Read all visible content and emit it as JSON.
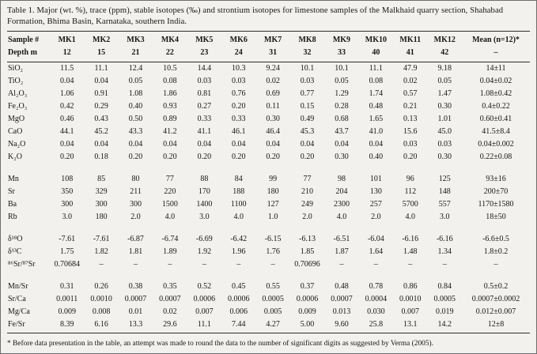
{
  "page": {
    "caption": "Table 1. Major (wt. %), trace (ppm), stable isotopes (‰) and strontium isotopes for limestone samples of the Malkhaid quarry section, Shahabad Formation, Bhima Basin, Karnataka, southern India.",
    "footnote": "* Before data presentation in the table, an attempt was made to round the data to the number of significant digits as suggested by Verma (2005)."
  },
  "table": {
    "corner": {
      "line1": "Sample #",
      "line2": "Depth m"
    },
    "samples": [
      "MK1",
      "MK2",
      "MK3",
      "MK4",
      "MK5",
      "MK6",
      "MK7",
      "MK8",
      "MK9",
      "MK10",
      "MK11",
      "MK12"
    ],
    "depths": [
      "12",
      "15",
      "21",
      "22",
      "23",
      "24",
      "31",
      "32",
      "33",
      "40",
      "41",
      "42"
    ],
    "mean_label": "Mean (n=12)*",
    "mean_depth": "–",
    "groups": [
      {
        "name": "major-oxides",
        "rows": [
          {
            "label": "SiO₂",
            "values": [
              "11.5",
              "11.1",
              "12.4",
              "10.5",
              "14.4",
              "10.3",
              "9.24",
              "10.1",
              "10.1",
              "11.1",
              "47.9",
              "9.18"
            ],
            "mean": "14±11"
          },
          {
            "label": "TiO₂",
            "values": [
              "0.04",
              "0.04",
              "0.05",
              "0.08",
              "0.03",
              "0.03",
              "0.02",
              "0.03",
              "0.05",
              "0.08",
              "0.02",
              "0.05"
            ],
            "mean": "0.04±0.02"
          },
          {
            "label": "Al₂O₃",
            "values": [
              "1.06",
              "0.91",
              "1.08",
              "1.86",
              "0.81",
              "0.76",
              "0.69",
              "0.77",
              "1.29",
              "1.74",
              "0.57",
              "1.47"
            ],
            "mean": "1.08±0.42"
          },
          {
            "label": "Fe₂O₃",
            "values": [
              "0.42",
              "0.29",
              "0.40",
              "0.93",
              "0.27",
              "0.20",
              "0.11",
              "0.15",
              "0.28",
              "0.48",
              "0.21",
              "0.30"
            ],
            "mean": "0.4±0.22"
          },
          {
            "label": "MgO",
            "values": [
              "0.46",
              "0.43",
              "0.50",
              "0.89",
              "0.33",
              "0.33",
              "0.30",
              "0.49",
              "0.68",
              "1.65",
              "0.13",
              "1.01"
            ],
            "mean": "0.60±0.41"
          },
          {
            "label": "CaO",
            "values": [
              "44.1",
              "45.2",
              "43.3",
              "41.2",
              "41.1",
              "46.1",
              "46.4",
              "45.3",
              "43.7",
              "41.0",
              "15.6",
              "45.0"
            ],
            "mean": "41.5±8.4"
          },
          {
            "label": "Na₂O",
            "values": [
              "0.04",
              "0.04",
              "0.04",
              "0.04",
              "0.04",
              "0.04",
              "0.04",
              "0.04",
              "0.04",
              "0.04",
              "0.03",
              "0.03"
            ],
            "mean": "0.04±0.002"
          },
          {
            "label": "K₂O",
            "values": [
              "0.20",
              "0.18",
              "0.20",
              "0.20",
              "0.20",
              "0.20",
              "0.20",
              "0.20",
              "0.30",
              "0.40",
              "0.20",
              "0.30"
            ],
            "mean": "0.22±0.08"
          }
        ]
      },
      {
        "name": "trace-elements",
        "rows": [
          {
            "label": "Mn",
            "values": [
              "108",
              "85",
              "80",
              "77",
              "88",
              "84",
              "99",
              "77",
              "98",
              "101",
              "96",
              "125"
            ],
            "mean": "93±16"
          },
          {
            "label": "Sr",
            "values": [
              "350",
              "329",
              "211",
              "220",
              "170",
              "188",
              "180",
              "210",
              "204",
              "130",
              "112",
              "148"
            ],
            "mean": "200±70"
          },
          {
            "label": "Ba",
            "values": [
              "300",
              "300",
              "300",
              "1500",
              "1400",
              "1100",
              "127",
              "249",
              "2300",
              "257",
              "5700",
              "557"
            ],
            "mean": "1170±1580"
          },
          {
            "label": "Rb",
            "values": [
              "3.0",
              "180",
              "2.0",
              "4.0",
              "3.0",
              "4.0",
              "1.0",
              "2.0",
              "4.0",
              "2.0",
              "4.0",
              "3.0"
            ],
            "mean": "18±50"
          }
        ]
      },
      {
        "name": "isotopes",
        "rows": [
          {
            "label": "δ¹⁸O",
            "values": [
              "-7.61",
              "-7.61",
              "-6.87",
              "-6.74",
              "-6.69",
              "-6.42",
              "-6.15",
              "-6.13",
              "-6.51",
              "-6.04",
              "-6.16",
              "-6.16"
            ],
            "mean": "-6.6±0.5"
          },
          {
            "label": "δ¹³C",
            "values": [
              "1.75",
              "1.82",
              "1.81",
              "1.89",
              "1.92",
              "1.96",
              "1.76",
              "1.85",
              "1.87",
              "1.64",
              "1.48",
              "1.34"
            ],
            "mean": "1.8±0.2"
          },
          {
            "label": "⁸⁶Sr/⁸⁷Sr",
            "values": [
              "0.70684",
              "–",
              "–",
              "–",
              "–",
              "–",
              "–",
              "0.70696",
              "–",
              "–",
              "–",
              "–"
            ],
            "mean": "–"
          }
        ]
      },
      {
        "name": "element-ratios",
        "rows": [
          {
            "label": "Mn/Sr",
            "values": [
              "0.31",
              "0.26",
              "0.38",
              "0.35",
              "0.52",
              "0.45",
              "0.55",
              "0.37",
              "0.48",
              "0.78",
              "0.86",
              "0.84"
            ],
            "mean": "0.5±0.2"
          },
          {
            "label": "Sr/Ca",
            "values": [
              "0.0011",
              "0.0010",
              "0.0007",
              "0.0007",
              "0.0006",
              "0.0006",
              "0.0005",
              "0.0006",
              "0.0007",
              "0.0004",
              "0.0010",
              "0.0005"
            ],
            "mean": "0.0007±0.0002"
          },
          {
            "label": "Mg/Ca",
            "values": [
              "0.009",
              "0.008",
              "0.01",
              "0.02",
              "0.007",
              "0.006",
              "0.005",
              "0.009",
              "0.013",
              "0.030",
              "0.007",
              "0.019"
            ],
            "mean": "0.012±0.007"
          },
          {
            "label": "Fe/Sr",
            "values": [
              "8.39",
              "6.16",
              "13.3",
              "29.6",
              "11.1",
              "7.44",
              "4.27",
              "5.00",
              "9.60",
              "25.8",
              "13.1",
              "14.2"
            ],
            "mean": "12±8"
          }
        ]
      }
    ]
  }
}
